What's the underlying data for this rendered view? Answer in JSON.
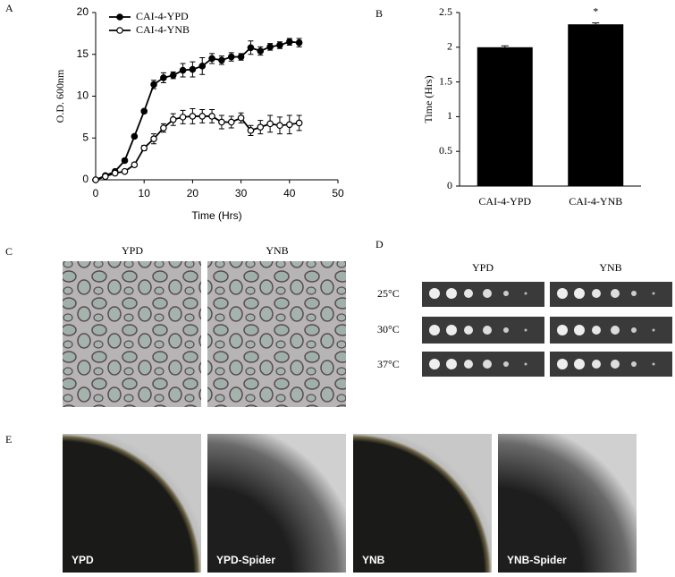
{
  "chart_data": [
    {
      "type": "line",
      "x_label": "Time (Hrs)",
      "y_label": "O.D. 600nm",
      "x": [
        0,
        2,
        4,
        6,
        8,
        10,
        12,
        14,
        16,
        18,
        20,
        22,
        24,
        26,
        28,
        30,
        32,
        34,
        36,
        38,
        40,
        42
      ],
      "series": [
        {
          "name": "CAI-4-YPD",
          "color": "#000000",
          "marker_fill": "#000000",
          "values": [
            0,
            0.5,
            1,
            2.3,
            5.2,
            8.2,
            11.4,
            12.2,
            12.5,
            13.1,
            13.2,
            13.6,
            14.5,
            14.3,
            14.7,
            14.7,
            15.8,
            15.4,
            15.9,
            16.1,
            16.5,
            16.4
          ],
          "errors": [
            0,
            0.1,
            0.1,
            0.2,
            0.2,
            0.2,
            0.5,
            0.6,
            0.4,
            0.8,
            0.9,
            1,
            0.6,
            0.5,
            0.5,
            0.4,
            0.8,
            0.5,
            0.4,
            0.4,
            0.4,
            0.5
          ]
        },
        {
          "name": "CAI-4-YNB",
          "color": "#000000",
          "marker_fill": "#ffffff",
          "values": [
            0,
            0.4,
            0.8,
            1,
            1.8,
            3.8,
            4.9,
            6.2,
            7.2,
            7.5,
            7.6,
            7.6,
            7.6,
            6.9,
            6.9,
            7.4,
            5.9,
            6.3,
            6.7,
            6.5,
            6.6,
            6.8
          ],
          "errors": [
            0,
            0.1,
            0.1,
            0.1,
            0.2,
            0.3,
            0.6,
            0.5,
            0.7,
            0.8,
            0.9,
            0.8,
            0.8,
            0.8,
            0.7,
            0.6,
            0.6,
            0.8,
            1,
            1,
            1.1,
            0.9
          ]
        }
      ],
      "xlim": [
        0,
        50
      ],
      "xticks": [
        0,
        10,
        20,
        30,
        40,
        50
      ],
      "ylim": [
        0,
        20
      ],
      "yticks": [
        0,
        5,
        10,
        15,
        20
      ],
      "legend": "upper left"
    },
    {
      "type": "bar",
      "y_label": "Time (Hrs)",
      "categories": [
        "CAI-4-YPD",
        "CAI-4-YNB"
      ],
      "values": [
        2.0,
        2.33
      ],
      "errors": [
        0.02,
        0.02
      ],
      "color": "#000000",
      "annotations": [
        "",
        "*"
      ],
      "ylim": [
        0,
        2.5
      ],
      "yticks": [
        0,
        0.5,
        1,
        1.5,
        2,
        2.5
      ]
    }
  ],
  "panels": {
    "letters": [
      "A",
      "B",
      "C",
      "D",
      "E"
    ],
    "c": {
      "labels": [
        "YPD",
        "YNB"
      ]
    },
    "d": {
      "columns": [
        "YPD",
        "YNB"
      ],
      "rows": [
        "25°C",
        "30°C",
        "37°C"
      ]
    },
    "e": {
      "labels": [
        "YPD",
        "YPD-Spider",
        "YNB",
        "YNB-Spider"
      ]
    }
  }
}
